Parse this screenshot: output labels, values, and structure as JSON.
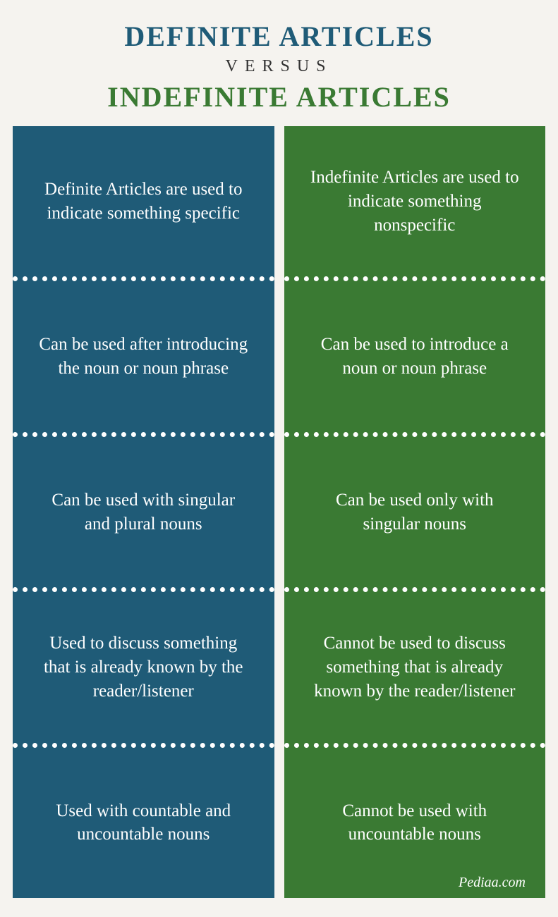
{
  "header": {
    "title_definite": "DEFINITE ARTICLES",
    "versus": "VERSUS",
    "title_indefinite": "INDEFINITE ARTICLES",
    "definite_color": "#1f5b77",
    "indefinite_color": "#3a7a33"
  },
  "columns": {
    "left": {
      "bg_color": "#1f5b77",
      "cells": [
        "Definite Articles are used to indicate something specific",
        "Can be used after introducing the noun or noun phrase",
        "Can be used with singular and plural nouns",
        "Used to discuss something that is already known by the reader/listener",
        "Used with countable and uncountable nouns"
      ]
    },
    "right": {
      "bg_color": "#3a7a33",
      "cells": [
        "Indefinite Articles are used to indicate something nonspecific",
        "Can be used to introduce a noun or noun phrase",
        "Can be used only with singular nouns",
        "Cannot be used to discuss something that is already known by the reader/listener",
        "Cannot be used with uncountable nouns"
      ]
    }
  },
  "style": {
    "page_bg": "#f5f3ef",
    "cell_text_color": "#ffffff",
    "cell_fontsize": 25,
    "divider_style": "dotted",
    "divider_color": "#ffffff",
    "divider_thickness": 7,
    "column_gap": 14,
    "title_fontsize": 40,
    "versus_fontsize": 24
  },
  "footer": {
    "text": "Pediaa.com"
  }
}
